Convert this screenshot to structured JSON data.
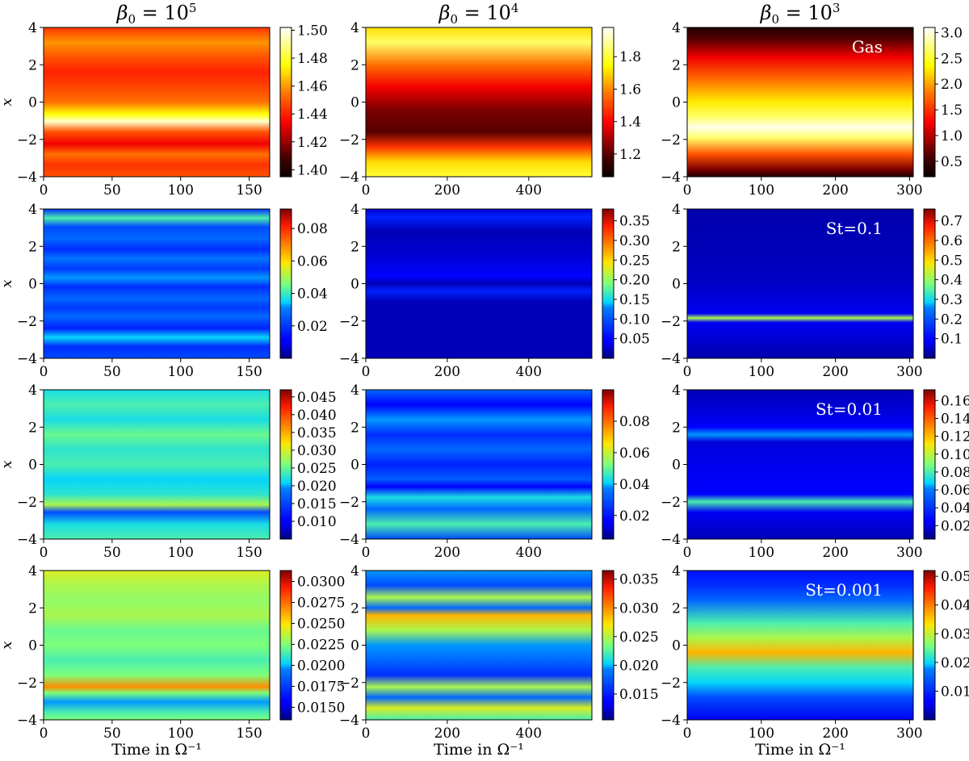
{
  "figure": {
    "xlabel": "Time in Ω⁻¹",
    "ylabel": "x",
    "column_titles": [
      {
        "prefix": "β",
        "sub": "0",
        "mid": " = 10",
        "sup": "5"
      },
      {
        "prefix": "β",
        "sub": "0",
        "mid": " = 10",
        "sup": "4"
      },
      {
        "prefix": "β",
        "sub": "0",
        "mid": " = 10",
        "sup": "3"
      }
    ],
    "row_labels": [
      "Gas",
      "St=0.1",
      "St=0.01",
      "St=0.001"
    ]
  },
  "chart_data": [
    {
      "type": "heatmap",
      "panel": "gas-beta1e5",
      "column_title": "β0 = 10^5",
      "row_label": "",
      "colormap": "hot",
      "xlim": [
        0,
        165
      ],
      "xticks": [
        0,
        50,
        100,
        150
      ],
      "ylim": [
        -4,
        4
      ],
      "yticks": [
        -4,
        -2,
        0,
        2,
        4
      ],
      "clim": [
        1.395,
        1.502
      ],
      "cticks": [
        "1.40",
        "1.42",
        "1.44",
        "1.46",
        "1.48",
        "1.50"
      ]
    },
    {
      "type": "heatmap",
      "panel": "gas-beta1e4",
      "column_title": "β0 = 10^4",
      "row_label": "",
      "colormap": "hot",
      "xlim": [
        0,
        555
      ],
      "xticks": [
        0,
        200,
        400
      ],
      "ylim": [
        -4,
        4
      ],
      "yticks": [
        -4,
        -2,
        0,
        2,
        4
      ],
      "clim": [
        1.06,
        1.98
      ],
      "cticks": [
        "1.2",
        "1.4",
        "1.6",
        "1.8"
      ]
    },
    {
      "type": "heatmap",
      "panel": "gas-beta1e3",
      "column_title": "β0 = 10^3",
      "row_label": "Gas",
      "colormap": "hot",
      "xlim": [
        0,
        305
      ],
      "xticks": [
        0,
        100,
        200,
        300
      ],
      "ylim": [
        -4,
        4
      ],
      "yticks": [
        -4,
        -2,
        0,
        2,
        4
      ],
      "clim": [
        0.2,
        3.1
      ],
      "cticks": [
        "0.5",
        "1.0",
        "1.5",
        "2.0",
        "2.5",
        "3.0"
      ]
    },
    {
      "type": "heatmap",
      "panel": "st01-beta1e5",
      "row_label": "",
      "colormap": "jet",
      "xlim": [
        0,
        165
      ],
      "xticks": [
        0,
        50,
        100,
        150
      ],
      "ylim": [
        -4,
        4
      ],
      "yticks": [
        -4,
        -2,
        0,
        2,
        4
      ],
      "clim": [
        0.0,
        0.092
      ],
      "cticks": [
        "0.02",
        "0.04",
        "0.06",
        "0.08"
      ]
    },
    {
      "type": "heatmap",
      "panel": "st01-beta1e4",
      "row_label": "",
      "colormap": "jet",
      "xlim": [
        0,
        555
      ],
      "xticks": [
        0,
        200,
        400
      ],
      "ylim": [
        -4,
        4
      ],
      "yticks": [
        -4,
        -2,
        0,
        2,
        4
      ],
      "clim": [
        0.0,
        0.38
      ],
      "cticks": [
        "0.05",
        "0.10",
        "0.15",
        "0.20",
        "0.25",
        "0.30",
        "0.35"
      ]
    },
    {
      "type": "heatmap",
      "panel": "st01-beta1e3",
      "row_label": "St=0.1",
      "colormap": "jet",
      "xlim": [
        0,
        305
      ],
      "xticks": [
        0,
        100,
        200,
        300
      ],
      "ylim": [
        -4,
        4
      ],
      "yticks": [
        -4,
        -2,
        0,
        2,
        4
      ],
      "clim": [
        0.0,
        0.76
      ],
      "cticks": [
        "0.1",
        "0.2",
        "0.3",
        "0.4",
        "0.5",
        "0.6",
        "0.7"
      ]
    },
    {
      "type": "heatmap",
      "panel": "st001-beta1e5",
      "row_label": "",
      "colormap": "jet",
      "xlim": [
        0,
        165
      ],
      "xticks": [
        0,
        50,
        100,
        150
      ],
      "ylim": [
        -4,
        4
      ],
      "yticks": [
        -4,
        -2,
        0,
        2,
        4
      ],
      "clim": [
        0.005,
        0.047
      ],
      "cticks": [
        "0.010",
        "0.015",
        "0.020",
        "0.025",
        "0.030",
        "0.035",
        "0.040",
        "0.045"
      ]
    },
    {
      "type": "heatmap",
      "panel": "st001-beta1e4",
      "row_label": "",
      "colormap": "jet",
      "xlim": [
        0,
        555
      ],
      "xticks": [
        0,
        200,
        400
      ],
      "ylim": [
        -4,
        4
      ],
      "yticks": [
        -4,
        -2,
        0,
        2,
        4
      ],
      "clim": [
        0.005,
        0.1
      ],
      "cticks": [
        "0.02",
        "0.04",
        "0.06",
        "0.08"
      ]
    },
    {
      "type": "heatmap",
      "panel": "st001-beta1e3",
      "row_label": "St=0.01",
      "colormap": "jet",
      "xlim": [
        0,
        305
      ],
      "xticks": [
        0,
        100,
        200,
        300
      ],
      "ylim": [
        -4,
        4
      ],
      "yticks": [
        -4,
        -2,
        0,
        2,
        4
      ],
      "clim": [
        0.005,
        0.172
      ],
      "cticks": [
        "0.02",
        "0.04",
        "0.06",
        "0.08",
        "0.10",
        "0.12",
        "0.14",
        "0.16"
      ]
    },
    {
      "type": "heatmap",
      "panel": "st0001-beta1e5",
      "row_label": "",
      "colormap": "jet",
      "xlim": [
        0,
        165
      ],
      "xticks": [
        0,
        50,
        100,
        150
      ],
      "ylim": [
        -4,
        4
      ],
      "yticks": [
        -4,
        -2,
        0,
        2,
        4
      ],
      "clim": [
        0.0135,
        0.0313
      ],
      "cticks": [
        "0.0150",
        "0.0175",
        "0.0200",
        "0.0225",
        "0.0250",
        "0.0275",
        "0.0300"
      ]
    },
    {
      "type": "heatmap",
      "panel": "st0001-beta1e4",
      "row_label": "",
      "colormap": "jet",
      "xlim": [
        0,
        555
      ],
      "xticks": [
        0,
        200,
        400
      ],
      "ylim": [
        -4,
        4
      ],
      "yticks": [
        -4,
        -2,
        0,
        2,
        4
      ],
      "clim": [
        0.0105,
        0.0365
      ],
      "cticks": [
        "0.015",
        "0.020",
        "0.025",
        "0.030",
        "0.035"
      ]
    },
    {
      "type": "heatmap",
      "panel": "st0001-beta1e3",
      "row_label": "St=0.001",
      "colormap": "jet",
      "xlim": [
        0,
        305
      ],
      "xticks": [
        0,
        100,
        200,
        300
      ],
      "ylim": [
        -4,
        4
      ],
      "yticks": [
        -4,
        -2,
        0,
        2,
        4
      ],
      "clim": [
        0.0,
        0.052
      ],
      "cticks": [
        "0.01",
        "0.02",
        "0.03",
        "0.04",
        "0.05"
      ]
    }
  ]
}
